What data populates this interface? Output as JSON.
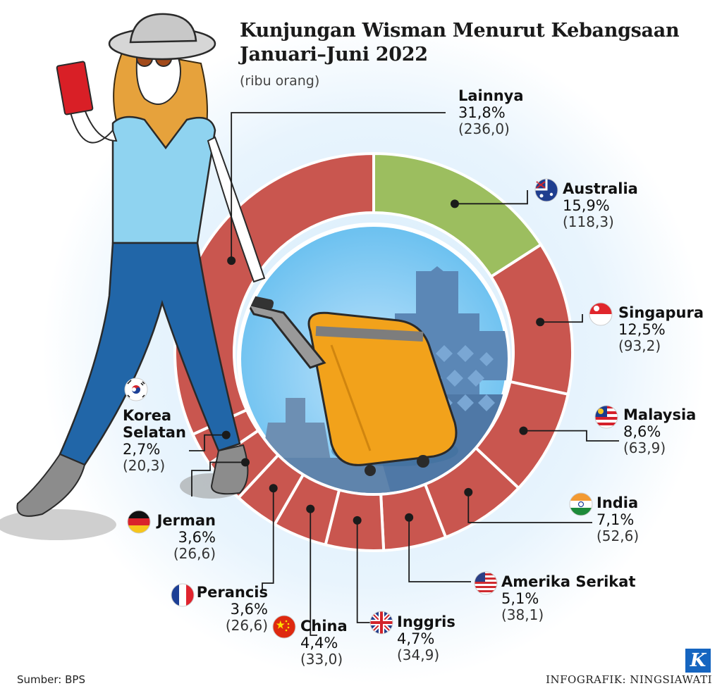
{
  "chart_data": {
    "type": "pie",
    "title_line1": "Kunjungan Wisman Menurut Kebangsaan",
    "title_line2": "Januari–Juni 2022",
    "unit": "(ribu orang)",
    "slices": [
      {
        "name": "Australia",
        "pct_label": "15,9%",
        "value_label": "(118,3)",
        "percent": 15.9,
        "value": 118.3,
        "color": "#9cbe5f",
        "flag": "australia-flag-icon"
      },
      {
        "name": "Singapura",
        "pct_label": "12,5%",
        "value_label": "(93,2)",
        "percent": 12.5,
        "value": 93.2,
        "color": "#c9564f",
        "flag": "singapore-flag-icon"
      },
      {
        "name": "Malaysia",
        "pct_label": "8,6%",
        "value_label": "(63,9)",
        "percent": 8.6,
        "value": 63.9,
        "color": "#c9564f",
        "flag": "malaysia-flag-icon"
      },
      {
        "name": "India",
        "pct_label": "7,1%",
        "value_label": "(52,6)",
        "percent": 7.1,
        "value": 52.6,
        "color": "#c9564f",
        "flag": "india-flag-icon"
      },
      {
        "name": "Amerika Serikat",
        "pct_label": "5,1%",
        "value_label": "(38,1)",
        "percent": 5.1,
        "value": 38.1,
        "color": "#c9564f",
        "flag": "usa-flag-icon"
      },
      {
        "name": "Inggris",
        "pct_label": "4,7%",
        "value_label": "(34,9)",
        "percent": 4.7,
        "value": 34.9,
        "color": "#c9564f",
        "flag": "uk-flag-icon"
      },
      {
        "name": "China",
        "pct_label": "4,4%",
        "value_label": "(33,0)",
        "percent": 4.4,
        "value": 33.0,
        "color": "#c9564f",
        "flag": "china-flag-icon"
      },
      {
        "name": "Perancis",
        "pct_label": "3,6%",
        "value_label": "(26,6)",
        "percent": 3.6,
        "value": 26.6,
        "color": "#c9564f",
        "flag": "france-flag-icon"
      },
      {
        "name": "Jerman",
        "pct_label": "3,6%",
        "value_label": "(26,6)",
        "percent": 3.6,
        "value": 26.6,
        "color": "#c9564f",
        "flag": "germany-flag-icon"
      },
      {
        "name": "Korea Selatan",
        "pct_label": "2,7%",
        "value_label": "(20,3)",
        "percent": 2.7,
        "value": 20.3,
        "color": "#c9564f",
        "flag": "south-korea-flag-icon"
      },
      {
        "name": "Lainnya",
        "pct_label": "31,8%",
        "value_label": "(236,0)",
        "percent": 31.8,
        "value": 236.0,
        "color": "#c9564f",
        "flag": ""
      }
    ]
  },
  "footer": {
    "source": "Sumber: BPS",
    "credit": "INFOGRAFIK: NINGSIAWATI",
    "logo": "K"
  }
}
